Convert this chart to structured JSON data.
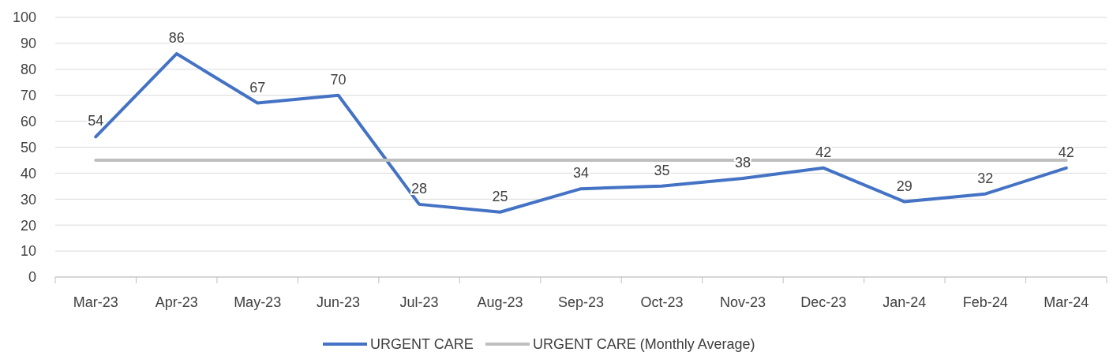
{
  "chart_data": {
    "type": "line",
    "categories": [
      "Mar-23",
      "Apr-23",
      "May-23",
      "Jun-23",
      "Jul-23",
      "Aug-23",
      "Sep-23",
      "Oct-23",
      "Nov-23",
      "Dec-23",
      "Jan-24",
      "Feb-24",
      "Mar-24"
    ],
    "series": [
      {
        "name": "URGENT CARE",
        "color": "#4472c4",
        "values": [
          54,
          86,
          67,
          70,
          28,
          25,
          34,
          35,
          38,
          42,
          29,
          32,
          42
        ],
        "value_labels": [
          "54",
          "86",
          "67",
          "70",
          "28",
          "25",
          "34",
          "35",
          "38",
          "42",
          "29",
          "32",
          "42"
        ]
      },
      {
        "name": "URGENT CARE (Monthly Average)",
        "color": "#bfbfbf",
        "values": [
          45,
          45,
          45,
          45,
          45,
          45,
          45,
          45,
          45,
          45,
          45,
          45,
          45
        ]
      }
    ],
    "ylim": [
      0,
      100
    ],
    "yticks": [
      0,
      10,
      20,
      30,
      40,
      50,
      60,
      70,
      80,
      90,
      100
    ],
    "grid": "y",
    "legend": "bottom",
    "marker": "none",
    "line_style": "solid"
  }
}
